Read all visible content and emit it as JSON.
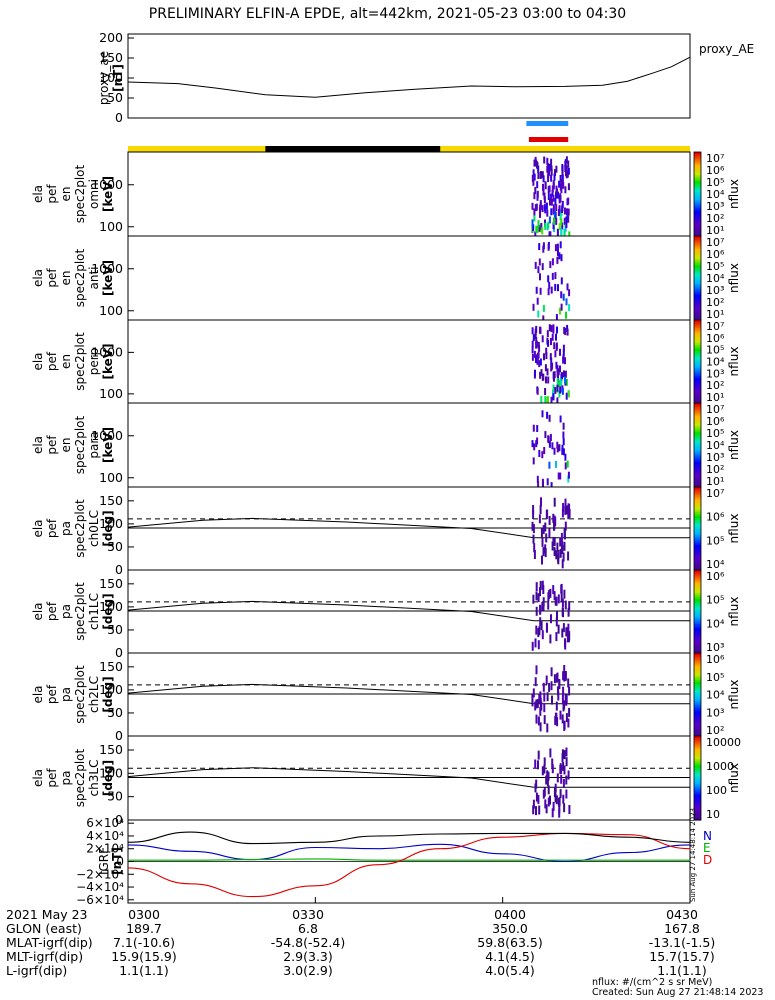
{
  "title": "PRELIMINARY ELFIN-A EPDE, alt=442km, 2021-05-23 03:00 to 04:30",
  "colors": {
    "background": "#ffffff",
    "sun_bar": "#f7d800",
    "shadow_bar": "#000000",
    "sci_blue": "#1e90ff",
    "sci_red": "#e00000",
    "n_trace": "#0000c8",
    "e_trace": "#00b000",
    "d_trace": "#e00000"
  },
  "chart_data": [
    {
      "type": "line",
      "panel": "proxy_ae",
      "ylabel": "proxy_ae [nT]",
      "legend": "proxy_AE",
      "ylim": [
        0,
        210
      ],
      "yticks": [
        "200",
        "150",
        "100",
        "50",
        "0"
      ],
      "x_minutes": [
        0,
        8,
        14,
        22,
        30,
        38,
        46,
        55,
        62,
        70,
        76,
        80,
        84,
        87,
        90
      ],
      "values": [
        90,
        86,
        75,
        58,
        52,
        63,
        72,
        80,
        78,
        79,
        82,
        92,
        112,
        128,
        152
      ]
    },
    {
      "type": "heatmap",
      "panel": "omni",
      "ylabel": "ela pef en spec2plot omni [keV]",
      "yticks": [
        "1000",
        "100"
      ],
      "colorbar_label": "nflux",
      "colorbar_ticks": [
        "10^7",
        "10^6",
        "10^5",
        "10^4",
        "10^3",
        "10^2",
        "10^1"
      ]
    },
    {
      "type": "heatmap",
      "panel": "anti",
      "ylabel": "ela pef en spec2plot anti [keV]",
      "yticks": [
        "1000",
        "100"
      ],
      "colorbar_label": "nflux",
      "colorbar_ticks": [
        "10^7",
        "10^6",
        "10^5",
        "10^4",
        "10^3",
        "10^2",
        "10^1"
      ]
    },
    {
      "type": "heatmap",
      "panel": "perp",
      "ylabel": "ela pef en spec2plot perp [keV]",
      "yticks": [
        "1000",
        "100"
      ],
      "colorbar_label": "nflux",
      "colorbar_ticks": [
        "10^7",
        "10^6",
        "10^5",
        "10^4",
        "10^3",
        "10^2",
        "10^1"
      ]
    },
    {
      "type": "heatmap",
      "panel": "para",
      "ylabel": "ela pef en spec2plot para [keV]",
      "yticks": [
        "1000",
        "100"
      ],
      "colorbar_label": "nflux",
      "colorbar_ticks": [
        "10^7",
        "10^6",
        "10^5",
        "10^4",
        "10^3",
        "10^2",
        "10^1"
      ]
    },
    {
      "type": "heatmap",
      "panel": "ch0LC",
      "ylabel": "ela pef pa spec2plot ch0LC [deg]",
      "yticks": [
        "150",
        "100",
        "50",
        "0"
      ],
      "colorbar_label": "nflux",
      "colorbar_ticks": [
        "10^7",
        "10^6",
        "10^5",
        "10^4"
      ]
    },
    {
      "type": "heatmap",
      "panel": "ch1LC",
      "ylabel": "ela pef pa spec2plot ch1LC [deg]",
      "yticks": [
        "150",
        "100",
        "50",
        "0"
      ],
      "colorbar_label": "nflux",
      "colorbar_ticks": [
        "10^6",
        "10^5",
        "10^4",
        "10^3"
      ]
    },
    {
      "type": "heatmap",
      "panel": "ch2LC",
      "ylabel": "ela pef pa spec2plot ch2LC [deg]",
      "yticks": [
        "150",
        "100",
        "50",
        "0"
      ],
      "colorbar_label": "nflux",
      "colorbar_ticks": [
        "10^6",
        "10^5",
        "10^4",
        "10^3",
        "10^2"
      ]
    },
    {
      "type": "heatmap",
      "panel": "ch3LC",
      "ylabel": "ela pef pa spec2plot ch3LC [deg]",
      "yticks": [
        "150",
        "100",
        "50",
        "0"
      ],
      "colorbar_label": "nflux",
      "colorbar_ticks": [
        "10000",
        "1000",
        "100",
        "10"
      ]
    },
    {
      "type": "line",
      "panel": "IGRF",
      "ylabel": "IGRF [nT]",
      "yticks": [
        "6×10^4",
        "4×10^4",
        "2×10^4",
        "0",
        "−2×10^4",
        "−4×10^4",
        "−6×10^4"
      ],
      "ylim": [
        -65000,
        65000
      ],
      "legend": [
        "N",
        "E",
        "D"
      ],
      "x_minutes": [
        0,
        10,
        20,
        30,
        40,
        50,
        60,
        70,
        80,
        90
      ],
      "series": [
        {
          "name": "N",
          "values": [
            26000,
            16000,
            3000,
            22000,
            20000,
            27000,
            12000,
            0,
            14000,
            26000
          ]
        },
        {
          "name": "E",
          "values": [
            2000,
            2000,
            3000,
            4000,
            2000,
            2000,
            2000,
            2000,
            2000,
            2000
          ]
        },
        {
          "name": "D",
          "values": [
            -10000,
            -35000,
            -55000,
            -38000,
            -5000,
            20000,
            38000,
            44000,
            42000,
            20000
          ]
        },
        {
          "name": "total",
          "values": [
            30000,
            46000,
            28000,
            30000,
            40000,
            43000,
            44000,
            44000,
            38000,
            30000
          ]
        }
      ]
    }
  ],
  "footer": {
    "labels": [
      "2021 May 23",
      "GLON (east)",
      "MLAT-igrf(dip)",
      "MLT-igrf(dip)",
      "L-igrf(dip)"
    ],
    "columns": [
      [
        "0300",
        "189.7",
        "7.1(-10.6)",
        "15.9(15.9)",
        "1.1(1.1)"
      ],
      [
        "0330",
        "6.8",
        "-54.8(-52.4)",
        "2.9(3.3)",
        "3.0(2.9)"
      ],
      [
        "0400",
        "350.0",
        "59.8(63.5)",
        "4.1(4.5)",
        "4.0(5.4)"
      ],
      [
        "0430",
        "167.8",
        "-13.1(-1.5)",
        "15.7(15.7)",
        "1.1(1.1)"
      ]
    ],
    "units_note": "nflux: #/(cm^2 s sr MeV)",
    "created": "Created: Sun Aug 27 21:48:14 2023",
    "side_stamp": "Sun Aug 27 14:48:14 2023"
  }
}
